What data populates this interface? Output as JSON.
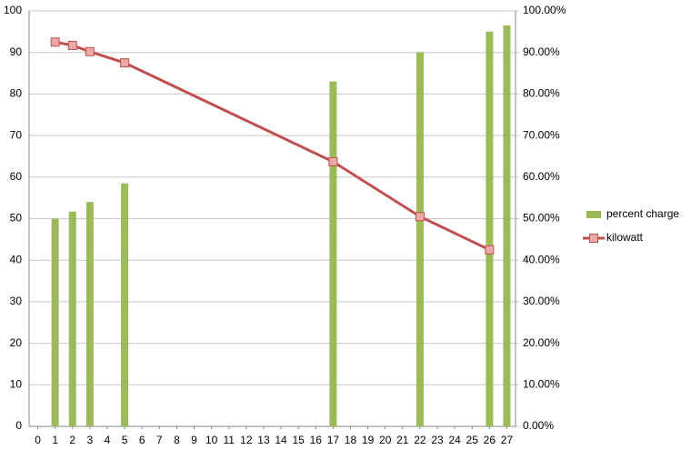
{
  "chart_data": {
    "type": "bar-line",
    "xlim": [
      -0.5,
      27.5
    ],
    "xticks": [
      0,
      1,
      2,
      3,
      4,
      5,
      6,
      7,
      8,
      9,
      10,
      11,
      12,
      13,
      14,
      15,
      16,
      17,
      18,
      19,
      20,
      21,
      22,
      23,
      24,
      25,
      26,
      27
    ],
    "ylim": [
      0,
      100
    ],
    "yticks": [
      0,
      10,
      20,
      30,
      40,
      50,
      60,
      70,
      80,
      90,
      100
    ],
    "y2lim": [
      0,
      100
    ],
    "y2ticks": [
      {
        "value": 0,
        "label": "0.00%"
      },
      {
        "value": 10,
        "label": "10.00%"
      },
      {
        "value": 20,
        "label": "20.00%"
      },
      {
        "value": 30,
        "label": "30.00%"
      },
      {
        "value": 40,
        "label": "40.00%"
      },
      {
        "value": 50,
        "label": "50.00%"
      },
      {
        "value": 60,
        "label": "60.00%"
      },
      {
        "value": 70,
        "label": "70.00%"
      },
      {
        "value": 80,
        "label": "80.00%"
      },
      {
        "value": 90,
        "label": "90.00%"
      },
      {
        "value": 100,
        "label": "100.00%"
      }
    ],
    "grid": true,
    "legend": "right",
    "series": [
      {
        "name": "percent charge",
        "type": "bar",
        "axis": "y2",
        "color": "#9bbb59",
        "x": [
          1,
          2,
          3,
          5,
          17,
          22,
          26,
          27
        ],
        "values": [
          50,
          51.7,
          54,
          58.5,
          83,
          90,
          95,
          96.5
        ]
      },
      {
        "name": "kilowatt",
        "type": "line",
        "color": "#c0504d",
        "x": [
          1,
          2,
          3,
          5,
          17,
          22,
          26
        ],
        "values": [
          92.5,
          91.7,
          90.2,
          87.5,
          63.7,
          50.5,
          42.5
        ]
      }
    ]
  }
}
